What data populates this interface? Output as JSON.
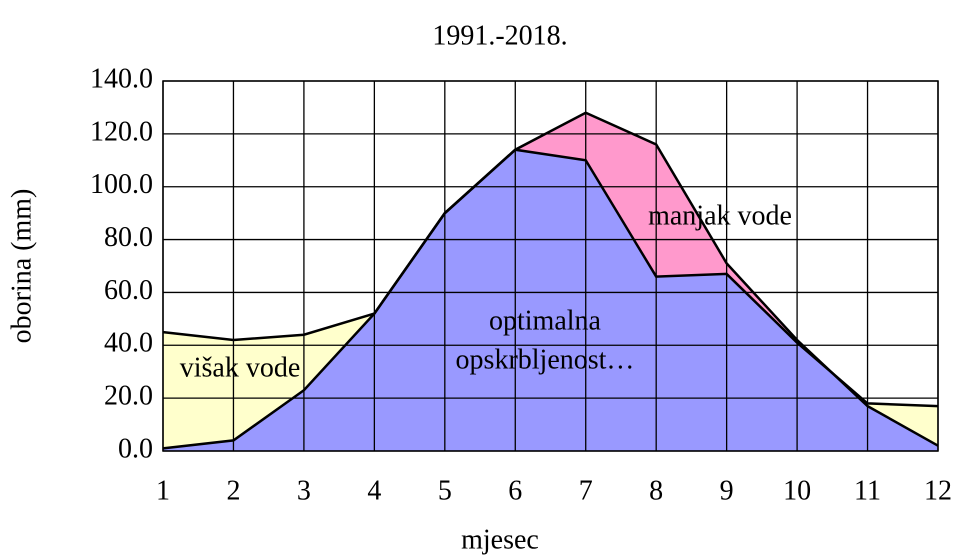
{
  "chart_data": {
    "type": "area",
    "title": "1991.-2018.",
    "x_label": "mjesec",
    "y_label": "oborina (mm)",
    "x": [
      1,
      2,
      3,
      4,
      5,
      6,
      7,
      8,
      9,
      10,
      11,
      12
    ],
    "xlim": [
      1,
      12
    ],
    "xticks": [
      1,
      2,
      3,
      4,
      5,
      6,
      7,
      8,
      9,
      10,
      11,
      12
    ],
    "ylim": [
      0,
      140
    ],
    "yticks": [
      {
        "value": 0,
        "label": "0.0"
      },
      {
        "value": 20,
        "label": "20.0"
      },
      {
        "value": 40,
        "label": "40.0"
      },
      {
        "value": 60,
        "label": "60.0"
      },
      {
        "value": 80,
        "label": "80.0"
      },
      {
        "value": 100,
        "label": "100.0"
      },
      {
        "value": 120,
        "label": "120.0"
      },
      {
        "value": 140,
        "label": "140.0"
      }
    ],
    "grid": true,
    "series": [
      {
        "color": "#ffffcc",
        "values": [
          45,
          42,
          44,
          52,
          90,
          114,
          110,
          66,
          67,
          41,
          18,
          17
        ]
      },
      {
        "color": "#ff99cc",
        "values": [
          1,
          4,
          23,
          52,
          90,
          114,
          128,
          116,
          71,
          42,
          17,
          2
        ]
      }
    ],
    "common_color": "#9999ff",
    "line_color": "#000000",
    "annotations": [
      "višak vode",
      "manjak vode",
      "optimalna",
      "opskrbljenost…"
    ]
  }
}
